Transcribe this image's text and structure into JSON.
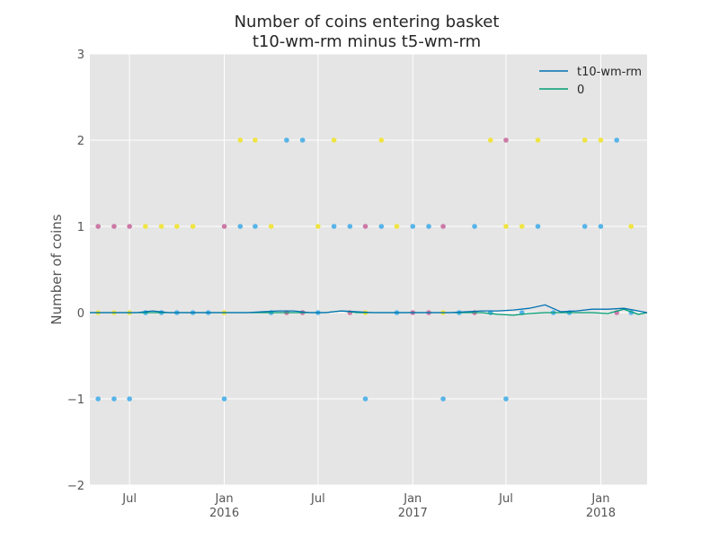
{
  "chart_data": {
    "type": "line",
    "title": "Number of coins entering basket",
    "subtitle": "t10-wm-rm minus t5-wm-rm",
    "ylabel": "Number of coins",
    "xlabel": "",
    "ylim": [
      -2,
      3
    ],
    "xlim": [
      "2015-04-15",
      "2018-04-01"
    ],
    "grid": true,
    "legend_placement": "top-right",
    "y_ticks": [
      {
        "value": -2,
        "label": "−2"
      },
      {
        "value": -1,
        "label": "−1"
      },
      {
        "value": 0,
        "label": "0"
      },
      {
        "value": 1,
        "label": "1"
      },
      {
        "value": 2,
        "label": "2"
      },
      {
        "value": 3,
        "label": "3"
      }
    ],
    "x_ticks": [
      {
        "date": "2015-07-01",
        "label": "Jul",
        "sublabel": ""
      },
      {
        "date": "2016-01-01",
        "label": "Jan",
        "sublabel": "2016"
      },
      {
        "date": "2016-07-01",
        "label": "Jul",
        "sublabel": ""
      },
      {
        "date": "2017-01-01",
        "label": "Jan",
        "sublabel": "2017"
      },
      {
        "date": "2017-07-01",
        "label": "Jul",
        "sublabel": ""
      },
      {
        "date": "2018-01-01",
        "label": "Jan",
        "sublabel": "2018"
      }
    ],
    "series": [
      {
        "name": "t10-wm-rm",
        "color": "#0072b2",
        "points": [
          [
            "2015-04-15",
            0.0
          ],
          [
            "2015-05-15",
            0.0
          ],
          [
            "2015-06-15",
            0.0
          ],
          [
            "2015-07-15",
            0.0
          ],
          [
            "2015-08-15",
            0.02
          ],
          [
            "2015-09-15",
            0.0
          ],
          [
            "2015-10-15",
            0.0
          ],
          [
            "2015-11-15",
            0.0
          ],
          [
            "2015-12-15",
            0.0
          ],
          [
            "2016-01-15",
            0.0
          ],
          [
            "2016-02-15",
            0.0
          ],
          [
            "2016-03-15",
            0.01
          ],
          [
            "2016-04-15",
            0.02
          ],
          [
            "2016-05-15",
            0.02
          ],
          [
            "2016-06-15",
            0.0
          ],
          [
            "2016-07-15",
            0.0
          ],
          [
            "2016-08-15",
            0.02
          ],
          [
            "2016-09-15",
            0.01
          ],
          [
            "2016-10-15",
            0.0
          ],
          [
            "2016-11-15",
            0.0
          ],
          [
            "2016-12-15",
            0.0
          ],
          [
            "2017-01-15",
            0.0
          ],
          [
            "2017-02-15",
            0.0
          ],
          [
            "2017-03-15",
            0.0
          ],
          [
            "2017-04-15",
            0.01
          ],
          [
            "2017-05-15",
            0.02
          ],
          [
            "2017-06-15",
            0.02
          ],
          [
            "2017-07-15",
            0.03
          ],
          [
            "2017-08-15",
            0.05
          ],
          [
            "2017-09-15",
            0.09
          ],
          [
            "2017-10-15",
            0.01
          ],
          [
            "2017-11-15",
            0.02
          ],
          [
            "2017-12-15",
            0.04
          ],
          [
            "2018-01-15",
            0.04
          ],
          [
            "2018-02-15",
            0.05
          ],
          [
            "2018-03-15",
            0.02
          ],
          [
            "2018-04-01",
            0.0
          ]
        ]
      },
      {
        "name": "0",
        "color": "#009e73",
        "points": [
          [
            "2015-04-15",
            0.0
          ],
          [
            "2015-05-15",
            0.0
          ],
          [
            "2015-06-15",
            0.0
          ],
          [
            "2015-07-15",
            0.0
          ],
          [
            "2015-08-15",
            0.0
          ],
          [
            "2015-09-15",
            0.0
          ],
          [
            "2015-10-15",
            0.0
          ],
          [
            "2015-11-15",
            0.0
          ],
          [
            "2015-12-15",
            0.0
          ],
          [
            "2016-01-15",
            0.0
          ],
          [
            "2016-02-15",
            0.0
          ],
          [
            "2016-03-15",
            0.0
          ],
          [
            "2016-04-15",
            0.0
          ],
          [
            "2016-05-15",
            0.0
          ],
          [
            "2016-06-15",
            0.0
          ],
          [
            "2016-07-15",
            0.0
          ],
          [
            "2016-08-15",
            0.02
          ],
          [
            "2016-09-15",
            0.0
          ],
          [
            "2016-10-15",
            0.0
          ],
          [
            "2016-11-15",
            0.0
          ],
          [
            "2016-12-15",
            0.0
          ],
          [
            "2017-01-15",
            0.0
          ],
          [
            "2017-02-15",
            0.0
          ],
          [
            "2017-03-15",
            0.0
          ],
          [
            "2017-04-15",
            0.0
          ],
          [
            "2017-05-15",
            0.0
          ],
          [
            "2017-06-15",
            -0.02
          ],
          [
            "2017-07-15",
            -0.03
          ],
          [
            "2017-08-15",
            -0.01
          ],
          [
            "2017-09-15",
            0.0
          ],
          [
            "2017-10-15",
            0.0
          ],
          [
            "2017-11-15",
            0.0
          ],
          [
            "2017-12-15",
            0.0
          ],
          [
            "2018-01-15",
            -0.01
          ],
          [
            "2018-02-15",
            0.04
          ],
          [
            "2018-03-15",
            -0.02
          ],
          [
            "2018-04-01",
            0.0
          ]
        ]
      }
    ],
    "scatter_points": [
      {
        "x": "2015-05-01",
        "y": 1,
        "color": "#cc79a7"
      },
      {
        "x": "2015-06-01",
        "y": 1,
        "color": "#cc79a7"
      },
      {
        "x": "2015-07-01",
        "y": 1,
        "color": "#cc79a7"
      },
      {
        "x": "2015-08-01",
        "y": 1,
        "color": "#f0e442"
      },
      {
        "x": "2015-09-01",
        "y": 1,
        "color": "#f0e442"
      },
      {
        "x": "2015-10-01",
        "y": 1,
        "color": "#f0e442"
      },
      {
        "x": "2015-11-01",
        "y": 1,
        "color": "#f0e442"
      },
      {
        "x": "2016-01-01",
        "y": 1,
        "color": "#cc79a7"
      },
      {
        "x": "2016-02-01",
        "y": 1,
        "color": "#56b4e9"
      },
      {
        "x": "2016-03-01",
        "y": 1,
        "color": "#56b4e9"
      },
      {
        "x": "2016-04-01",
        "y": 1,
        "color": "#f0e442"
      },
      {
        "x": "2016-07-01",
        "y": 1,
        "color": "#f0e442"
      },
      {
        "x": "2016-08-01",
        "y": 1,
        "color": "#56b4e9"
      },
      {
        "x": "2016-09-01",
        "y": 1,
        "color": "#56b4e9"
      },
      {
        "x": "2016-10-01",
        "y": 1,
        "color": "#cc79a7"
      },
      {
        "x": "2016-11-01",
        "y": 1,
        "color": "#56b4e9"
      },
      {
        "x": "2016-12-01",
        "y": 1,
        "color": "#f0e442"
      },
      {
        "x": "2017-01-01",
        "y": 1,
        "color": "#56b4e9"
      },
      {
        "x": "2017-02-01",
        "y": 1,
        "color": "#56b4e9"
      },
      {
        "x": "2017-03-01",
        "y": 1,
        "color": "#cc79a7"
      },
      {
        "x": "2017-05-01",
        "y": 1,
        "color": "#56b4e9"
      },
      {
        "x": "2017-07-01",
        "y": 1,
        "color": "#f0e442"
      },
      {
        "x": "2017-08-01",
        "y": 1,
        "color": "#f0e442"
      },
      {
        "x": "2017-09-01",
        "y": 1,
        "color": "#56b4e9"
      },
      {
        "x": "2017-12-01",
        "y": 1,
        "color": "#56b4e9"
      },
      {
        "x": "2018-01-01",
        "y": 1,
        "color": "#56b4e9"
      },
      {
        "x": "2018-03-01",
        "y": 1,
        "color": "#f0e442"
      },
      {
        "x": "2016-02-01",
        "y": 2,
        "color": "#f0e442"
      },
      {
        "x": "2016-03-01",
        "y": 2,
        "color": "#f0e442"
      },
      {
        "x": "2016-05-01",
        "y": 2,
        "color": "#56b4e9"
      },
      {
        "x": "2016-06-01",
        "y": 2,
        "color": "#56b4e9"
      },
      {
        "x": "2016-08-01",
        "y": 2,
        "color": "#f0e442"
      },
      {
        "x": "2016-11-01",
        "y": 2,
        "color": "#f0e442"
      },
      {
        "x": "2017-06-01",
        "y": 2,
        "color": "#f0e442"
      },
      {
        "x": "2017-07-01",
        "y": 2,
        "color": "#cc79a7"
      },
      {
        "x": "2017-09-01",
        "y": 2,
        "color": "#f0e442"
      },
      {
        "x": "2017-12-01",
        "y": 2,
        "color": "#f0e442"
      },
      {
        "x": "2018-01-01",
        "y": 2,
        "color": "#f0e442"
      },
      {
        "x": "2018-02-01",
        "y": 2,
        "color": "#56b4e9"
      },
      {
        "x": "2015-05-01",
        "y": -1,
        "color": "#56b4e9"
      },
      {
        "x": "2015-06-01",
        "y": -1,
        "color": "#56b4e9"
      },
      {
        "x": "2015-07-01",
        "y": -1,
        "color": "#56b4e9"
      },
      {
        "x": "2016-01-01",
        "y": -1,
        "color": "#56b4e9"
      },
      {
        "x": "2016-10-01",
        "y": -1,
        "color": "#56b4e9"
      },
      {
        "x": "2017-03-01",
        "y": -1,
        "color": "#56b4e9"
      },
      {
        "x": "2017-07-01",
        "y": -1,
        "color": "#56b4e9"
      },
      {
        "x": "2015-05-01",
        "y": 0,
        "color": "#f0e442"
      },
      {
        "x": "2015-06-01",
        "y": 0,
        "color": "#f0e442"
      },
      {
        "x": "2015-07-01",
        "y": 0,
        "color": "#f0e442"
      },
      {
        "x": "2015-08-01",
        "y": 0,
        "color": "#56b4e9"
      },
      {
        "x": "2015-09-01",
        "y": 0,
        "color": "#56b4e9"
      },
      {
        "x": "2015-10-01",
        "y": 0,
        "color": "#56b4e9"
      },
      {
        "x": "2015-11-01",
        "y": 0,
        "color": "#56b4e9"
      },
      {
        "x": "2015-12-01",
        "y": 0,
        "color": "#56b4e9"
      },
      {
        "x": "2016-01-01",
        "y": 0,
        "color": "#f0e442"
      },
      {
        "x": "2016-04-01",
        "y": 0,
        "color": "#56b4e9"
      },
      {
        "x": "2016-05-01",
        "y": 0,
        "color": "#cc79a7"
      },
      {
        "x": "2016-06-01",
        "y": 0,
        "color": "#cc79a7"
      },
      {
        "x": "2016-07-01",
        "y": 0,
        "color": "#56b4e9"
      },
      {
        "x": "2016-09-01",
        "y": 0,
        "color": "#cc79a7"
      },
      {
        "x": "2016-10-01",
        "y": 0,
        "color": "#f0e442"
      },
      {
        "x": "2016-12-01",
        "y": 0,
        "color": "#56b4e9"
      },
      {
        "x": "2017-01-01",
        "y": 0,
        "color": "#cc79a7"
      },
      {
        "x": "2017-02-01",
        "y": 0,
        "color": "#cc79a7"
      },
      {
        "x": "2017-03-01",
        "y": 0,
        "color": "#f0e442"
      },
      {
        "x": "2017-04-01",
        "y": 0,
        "color": "#56b4e9"
      },
      {
        "x": "2017-05-01",
        "y": 0,
        "color": "#cc79a7"
      },
      {
        "x": "2017-06-01",
        "y": 0,
        "color": "#56b4e9"
      },
      {
        "x": "2017-08-01",
        "y": 0,
        "color": "#56b4e9"
      },
      {
        "x": "2017-10-01",
        "y": 0,
        "color": "#56b4e9"
      },
      {
        "x": "2017-11-01",
        "y": 0,
        "color": "#56b4e9"
      },
      {
        "x": "2018-02-01",
        "y": 0,
        "color": "#cc79a7"
      },
      {
        "x": "2018-03-01",
        "y": 0,
        "color": "#56b4e9"
      }
    ]
  }
}
